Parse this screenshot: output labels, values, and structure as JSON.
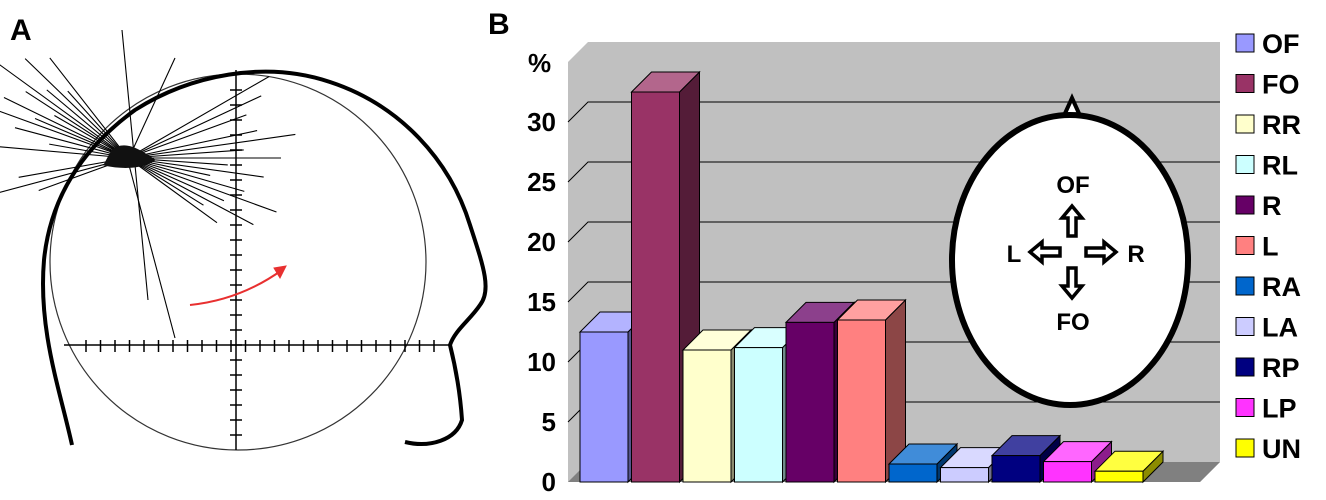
{
  "figure": {
    "panel_a_label": "A",
    "panel_b_label": "B"
  },
  "chart_data": {
    "type": "bar",
    "ylabel": "%",
    "ylim": [
      0,
      35
    ],
    "yticks": [
      0,
      5,
      10,
      15,
      20,
      25,
      30
    ],
    "grid": true,
    "legend_placement": "right",
    "categories": [
      "OF",
      "FO",
      "RR",
      "RL",
      "R",
      "L",
      "RA",
      "LA",
      "RP",
      "LP",
      "UN"
    ],
    "values": [
      12.5,
      32.5,
      11,
      11.2,
      13.3,
      13.5,
      1.5,
      1.2,
      2.2,
      1.7,
      0.9
    ],
    "colors": [
      "#9999ff",
      "#993366",
      "#ffffcc",
      "#ccffff",
      "#660066",
      "#ff8080",
      "#0066cc",
      "#ccccff",
      "#000080",
      "#ff33ff",
      "#ffff00"
    ],
    "inset": {
      "top": "OF",
      "bottom": "FO",
      "left": "L",
      "right": "R"
    }
  }
}
